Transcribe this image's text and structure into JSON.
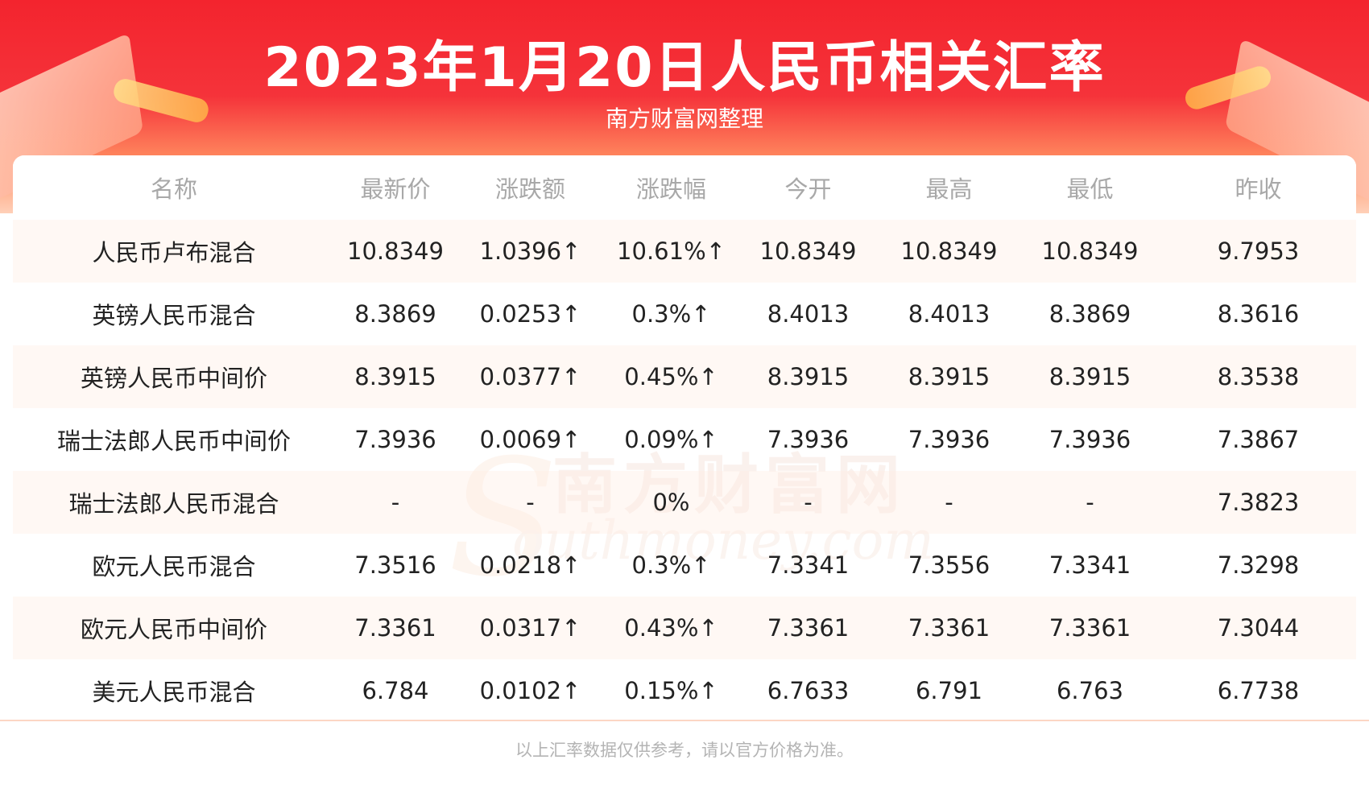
{
  "header": {
    "title": "2023年1月20日人民币相关汇率",
    "subtitle": "南方财富网整理"
  },
  "watermark": {
    "cn": "南方财富网",
    "en": "outhmoney.com",
    "initial": "S"
  },
  "table": {
    "columns": [
      "名称",
      "最新价",
      "涨跌额",
      "涨跌幅",
      "今开",
      "最高",
      "最低",
      "昨收"
    ],
    "rows": [
      {
        "name": "人民币卢布混合",
        "latest": "10.8349",
        "change": "1.0396↑",
        "pct": "10.61%↑",
        "open": "10.8349",
        "high": "10.8349",
        "low": "10.8349",
        "prev": "9.7953"
      },
      {
        "name": "英镑人民币混合",
        "latest": "8.3869",
        "change": "0.0253↑",
        "pct": "0.3%↑",
        "open": "8.4013",
        "high": "8.4013",
        "low": "8.3869",
        "prev": "8.3616"
      },
      {
        "name": "英镑人民币中间价",
        "latest": "8.3915",
        "change": "0.0377↑",
        "pct": "0.45%↑",
        "open": "8.3915",
        "high": "8.3915",
        "low": "8.3915",
        "prev": "8.3538"
      },
      {
        "name": "瑞士法郎人民币中间价",
        "latest": "7.3936",
        "change": "0.0069↑",
        "pct": "0.09%↑",
        "open": "7.3936",
        "high": "7.3936",
        "low": "7.3936",
        "prev": "7.3867"
      },
      {
        "name": "瑞士法郎人民币混合",
        "latest": "-",
        "change": "-",
        "pct": "0%",
        "open": "-",
        "high": "-",
        "low": "-",
        "prev": "7.3823"
      },
      {
        "name": "欧元人民币混合",
        "latest": "7.3516",
        "change": "0.0218↑",
        "pct": "0.3%↑",
        "open": "7.3341",
        "high": "7.3556",
        "low": "7.3341",
        "prev": "7.3298"
      },
      {
        "name": "欧元人民币中间价",
        "latest": "7.3361",
        "change": "0.0317↑",
        "pct": "0.43%↑",
        "open": "7.3361",
        "high": "7.3361",
        "low": "7.3361",
        "prev": "7.3044"
      },
      {
        "name": "美元人民币混合",
        "latest": "6.784",
        "change": "0.0102↑",
        "pct": "0.15%↑",
        "open": "6.7633",
        "high": "6.791",
        "low": "6.763",
        "prev": "6.7738"
      }
    ]
  },
  "footer": {
    "note": "以上汇率数据仅供参考，请以官方价格为准。"
  },
  "colors": {
    "brand_red": "#f3242e",
    "up_red": "#ee1c25",
    "header_text": "#a8a8a8"
  }
}
